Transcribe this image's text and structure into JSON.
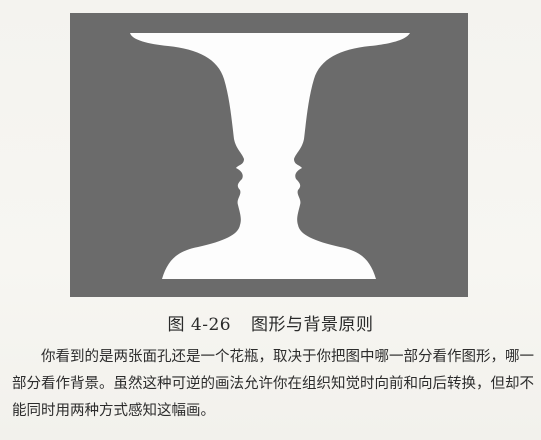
{
  "figure": {
    "background_color": "#6b6b6b",
    "vase_color": "#fdfdfd",
    "subject": "rubin-vase-faces"
  },
  "caption": {
    "number": "图 4-26",
    "title": "图形与背景原则"
  },
  "paragraph": {
    "text": "你看到的是两张面孔还是一个花瓶，取决于你把图中哪一部分看作图形，哪一部分看作背景。虽然这种可逆的画法允许你在组织知觉时向前和向后转换，但却不能同时用两种方式感知这幅画。"
  }
}
